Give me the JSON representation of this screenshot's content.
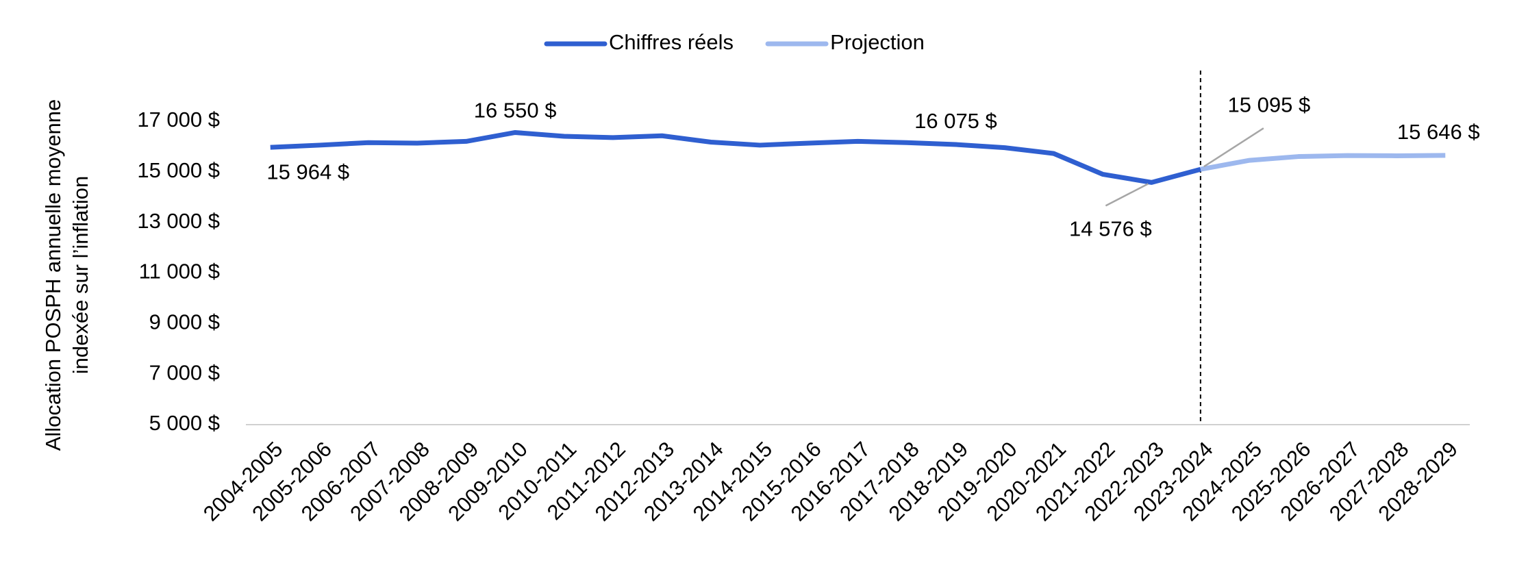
{
  "chart_data": {
    "type": "line",
    "ylabel": [
      "Allocation POSPH annuelle moyenne",
      "indexée sur l’inflation"
    ],
    "categories": [
      "2004-2005",
      "2005-2006",
      "2006-2007",
      "2007-2008",
      "2008-2009",
      "2009-2010",
      "2010-2011",
      "2011-2012",
      "2012-2013",
      "2013-2014",
      "2014-2015",
      "2015-2016",
      "2016-2017",
      "2017-2018",
      "2018-2019",
      "2019-2020",
      "2020-2021",
      "2021-2022",
      "2022-2023",
      "2023-2024",
      "2024-2025",
      "2025-2026",
      "2026-2027",
      "2027-2028",
      "2028-2029"
    ],
    "series": [
      {
        "name": "Chiffres réels",
        "color": "#2f5fd0",
        "values": [
          15964,
          16050,
          16150,
          16130,
          16200,
          16550,
          16400,
          16350,
          16420,
          16170,
          16050,
          16130,
          16200,
          16150,
          16075,
          15950,
          15720,
          14900,
          14576,
          15095,
          null,
          null,
          null,
          null,
          null
        ],
        "value_labels": [
          "15 964 $",
          null,
          null,
          null,
          null,
          "16 550 $",
          null,
          null,
          null,
          null,
          null,
          null,
          null,
          null,
          "16 075 $",
          null,
          null,
          null,
          "14 576 $",
          "15 095 $",
          null,
          null,
          null,
          null,
          null
        ]
      },
      {
        "name": "Projection",
        "color": "#9db8ee",
        "values": [
          null,
          null,
          null,
          null,
          null,
          null,
          null,
          null,
          null,
          null,
          null,
          null,
          null,
          null,
          null,
          null,
          null,
          null,
          null,
          15095,
          15450,
          15600,
          15640,
          15630,
          15646
        ],
        "value_labels": [
          null,
          null,
          null,
          null,
          null,
          null,
          null,
          null,
          null,
          null,
          null,
          null,
          null,
          null,
          null,
          null,
          null,
          null,
          null,
          null,
          null,
          null,
          null,
          null,
          "15 646 $"
        ]
      }
    ],
    "ylim": [
      5000,
      19000
    ],
    "yticks": [
      {
        "value": 5000,
        "label": "5 000 $"
      },
      {
        "value": 7000,
        "label": "7 000 $"
      },
      {
        "value": 9000,
        "label": "9 000 $"
      },
      {
        "value": 11000,
        "label": "11 000 $"
      },
      {
        "value": 13000,
        "label": "13 000 $"
      },
      {
        "value": 15000,
        "label": "15 000 $"
      },
      {
        "value": 17000,
        "label": "17 000 $"
      }
    ],
    "grid": false,
    "legend": "top"
  }
}
